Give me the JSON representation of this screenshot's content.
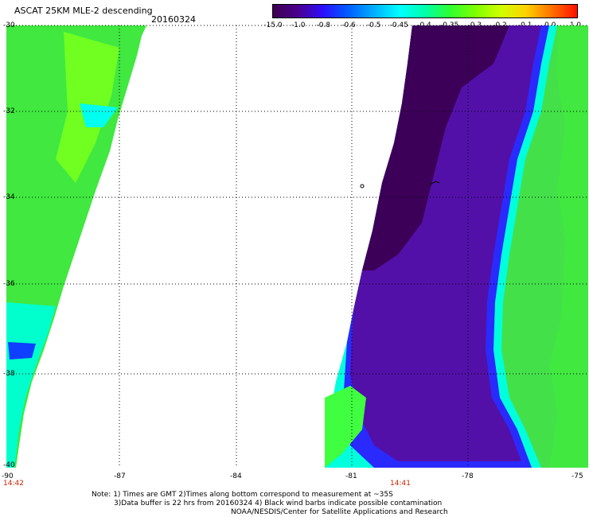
{
  "header": {
    "title": "ASCAT 25KM MLE-2 descending",
    "date": "20160324"
  },
  "colorbar": {
    "labels": [
      "-15.0",
      "-1.0",
      "-0.8",
      "-0.6",
      "-0.5",
      "-0.45",
      "-0.4",
      "-0.35",
      "-0.3",
      "-0.2",
      "-0.1",
      "0.0",
      "1.0"
    ],
    "colors": [
      "#3d0050",
      "#4a0090",
      "#2a10ff",
      "#0060ff",
      "#00b0ff",
      "#00ffff",
      "#00ffaa",
      "#30ff30",
      "#80ff00",
      "#d0ff00",
      "#ffd000",
      "#ff7000",
      "#ff1000"
    ]
  },
  "axes": {
    "lat_labels": [
      "-30",
      "-32",
      "-34",
      "-36",
      "-38",
      "-40"
    ],
    "lon_labels": [
      "-90",
      "-87",
      "-84",
      "-81",
      "-78",
      "-75"
    ]
  },
  "times": {
    "left": "14:42",
    "right": "14:41"
  },
  "notes": [
    "Note: 1) Times are GMT 2)Times along bottom correspond to measurement at ~35S",
    "3)Data buffer is 22 hrs from 20160324 4) Black wind barbs indicate possible contamination",
    "NOAA/NESDIS/Center for Satellite Applications and Research"
  ]
}
